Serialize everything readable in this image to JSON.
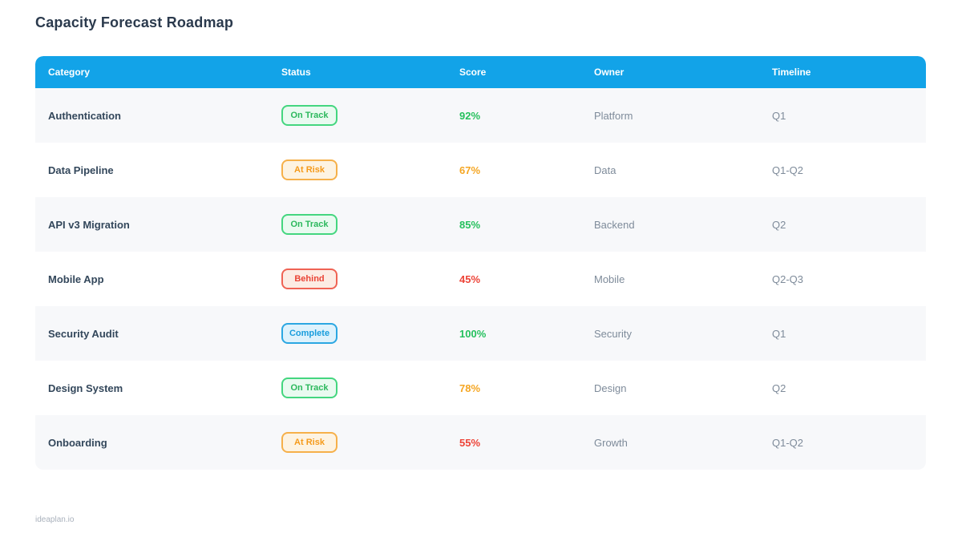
{
  "page": {
    "title": "Capacity Forecast Roadmap",
    "footer": "ideaplan.io"
  },
  "colors": {
    "header_bar": "#12a3e8",
    "score_green": "#25c05d",
    "score_orange": "#f5a623",
    "score_red": "#ed4337",
    "badge_on_track_border": "#44d67f",
    "badge_at_risk_border": "#f6b04a",
    "badge_behind_border": "#ef6354",
    "badge_complete_border": "#2ba7e2",
    "row_alt_bg": "#f7f8fa"
  },
  "table": {
    "headers": [
      "Category",
      "Status",
      "Score",
      "Owner",
      "Timeline"
    ],
    "rows": [
      {
        "category": "Authentication",
        "status": "On Track",
        "status_type": "on-track",
        "score": "92%",
        "score_class": "green",
        "owner": "Platform",
        "timeline": "Q1"
      },
      {
        "category": "Data Pipeline",
        "status": "At Risk",
        "status_type": "at-risk",
        "score": "67%",
        "score_class": "orange",
        "owner": "Data",
        "timeline": "Q1-Q2"
      },
      {
        "category": "API v3 Migration",
        "status": "On Track",
        "status_type": "on-track",
        "score": "85%",
        "score_class": "green",
        "owner": "Backend",
        "timeline": "Q2"
      },
      {
        "category": "Mobile App",
        "status": "Behind",
        "status_type": "behind",
        "score": "45%",
        "score_class": "red",
        "owner": "Mobile",
        "timeline": "Q2-Q3"
      },
      {
        "category": "Security Audit",
        "status": "Complete",
        "status_type": "complete",
        "score": "100%",
        "score_class": "green",
        "owner": "Security",
        "timeline": "Q1"
      },
      {
        "category": "Design System",
        "status": "On Track",
        "status_type": "on-track",
        "score": "78%",
        "score_class": "orange",
        "owner": "Design",
        "timeline": "Q2"
      },
      {
        "category": "Onboarding",
        "status": "At Risk",
        "status_type": "at-risk",
        "score": "55%",
        "score_class": "red",
        "owner": "Growth",
        "timeline": "Q1-Q2"
      }
    ]
  }
}
